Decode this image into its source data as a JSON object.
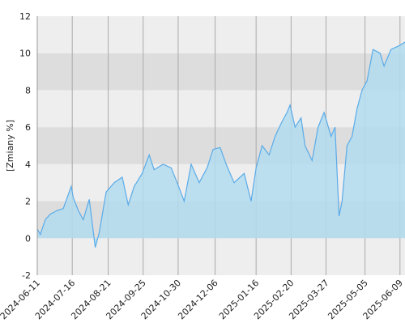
{
  "chart_data": {
    "type": "area",
    "y_label": "[Zmiany %]",
    "x": [
      "2024-06-11",
      "2024-06-14",
      "2024-06-19",
      "2024-06-24",
      "2024-07-01",
      "2024-07-07",
      "2024-07-15",
      "2024-07-17",
      "2024-07-22",
      "2024-07-27",
      "2024-08-02",
      "2024-08-08",
      "2024-08-12",
      "2024-08-19",
      "2024-08-27",
      "2024-09-04",
      "2024-09-10",
      "2024-09-16",
      "2024-09-24",
      "2024-10-01",
      "2024-10-06",
      "2024-10-15",
      "2024-10-23",
      "2024-10-29",
      "2024-11-05",
      "2024-11-12",
      "2024-11-20",
      "2024-11-28",
      "2024-12-04",
      "2024-12-11",
      "2024-12-17",
      "2024-12-25",
      "2025-01-04",
      "2025-01-11",
      "2025-01-16",
      "2025-01-22",
      "2025-01-29",
      "2025-02-04",
      "2025-02-10",
      "2025-02-16",
      "2025-02-19",
      "2025-02-24",
      "2025-03-02",
      "2025-03-06",
      "2025-03-13",
      "2025-03-19",
      "2025-03-25",
      "2025-04-01",
      "2025-04-05",
      "2025-04-09",
      "2025-04-12",
      "2025-04-17",
      "2025-04-22",
      "2025-04-27",
      "2025-05-02",
      "2025-05-07",
      "2025-05-13",
      "2025-05-20",
      "2025-05-24",
      "2025-05-31",
      "2025-06-08",
      "2025-06-14"
    ],
    "values": [
      0.5,
      0.2,
      1.0,
      1.3,
      1.5,
      1.6,
      2.8,
      2.2,
      1.5,
      1.0,
      2.1,
      -0.5,
      0.3,
      2.5,
      3.0,
      3.3,
      1.8,
      2.8,
      3.5,
      4.5,
      3.7,
      4.0,
      3.8,
      3.0,
      2.0,
      4.0,
      3.0,
      3.8,
      4.8,
      4.9,
      4.0,
      3.0,
      3.5,
      2.0,
      3.8,
      5.0,
      4.5,
      5.5,
      6.2,
      6.8,
      7.2,
      6.0,
      6.5,
      5.0,
      4.2,
      6.0,
      6.8,
      5.5,
      6.0,
      1.2,
      2.0,
      5.0,
      5.5,
      7.0,
      8.0,
      8.5,
      10.2,
      10.0,
      9.3,
      10.2,
      10.4,
      10.6
    ],
    "color": "#5aabe8",
    "fill": "#b3dcef",
    "xlim": [
      "2024-06-11",
      "2025-06-14"
    ],
    "xticks": [
      "2024-06-11",
      "2024-07-16",
      "2024-08-21",
      "2024-09-25",
      "2024-10-30",
      "2024-12-06",
      "2025-01-16",
      "2025-02-20",
      "2025-03-27",
      "2025-05-05",
      "2025-06-09"
    ],
    "ylim": [
      -2,
      12
    ],
    "yticks": [
      -2,
      0,
      2,
      4,
      6,
      8,
      10,
      12
    ],
    "grid": true
  }
}
